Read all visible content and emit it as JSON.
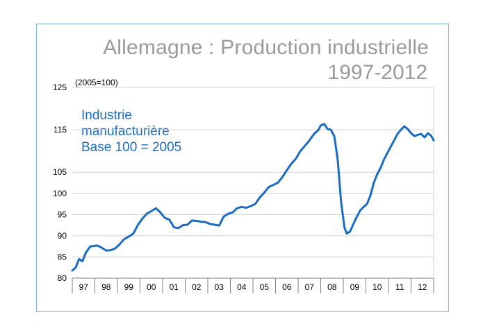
{
  "chart_data": {
    "type": "line",
    "title": "Allemagne : Production industrielle",
    "subtitle": "1997-2012",
    "unit_label": "(2005=100)",
    "series_label_lines": [
      "Industrie",
      "manufacturière",
      "Base 100 = 2005"
    ],
    "xlabel": "",
    "ylabel": "",
    "x_categories": [
      "97",
      "98",
      "99",
      "00",
      "01",
      "02",
      "03",
      "04",
      "05",
      "06",
      "07",
      "08",
      "09",
      "10",
      "11",
      "12"
    ],
    "y_ticks": [
      80,
      85,
      90,
      95,
      100,
      105,
      115,
      125
    ],
    "ylim": [
      80,
      125
    ],
    "grid": "horizontal",
    "series": [
      {
        "color": "#1a6bc4",
        "points": [
          [
            1997.0,
            81.8
          ],
          [
            1997.15,
            82.5
          ],
          [
            1997.3,
            84.5
          ],
          [
            1997.45,
            84.0
          ],
          [
            1997.6,
            86.0
          ],
          [
            1997.8,
            87.5
          ],
          [
            1997.95,
            87.6
          ],
          [
            1998.1,
            87.7
          ],
          [
            1998.3,
            87.2
          ],
          [
            1998.5,
            86.5
          ],
          [
            1998.7,
            86.6
          ],
          [
            1998.9,
            87.0
          ],
          [
            1999.1,
            88.0
          ],
          [
            1999.3,
            89.2
          ],
          [
            1999.5,
            89.8
          ],
          [
            1999.7,
            90.5
          ],
          [
            1999.9,
            92.5
          ],
          [
            2000.1,
            94.0
          ],
          [
            2000.3,
            95.2
          ],
          [
            2000.5,
            95.8
          ],
          [
            2000.7,
            96.5
          ],
          [
            2000.9,
            95.5
          ],
          [
            2001.1,
            94.2
          ],
          [
            2001.3,
            93.8
          ],
          [
            2001.5,
            92.0
          ],
          [
            2001.7,
            91.8
          ],
          [
            2001.9,
            92.5
          ],
          [
            2002.1,
            92.6
          ],
          [
            2002.3,
            93.6
          ],
          [
            2002.5,
            93.5
          ],
          [
            2002.7,
            93.3
          ],
          [
            2002.9,
            93.2
          ],
          [
            2003.1,
            92.8
          ],
          [
            2003.3,
            92.6
          ],
          [
            2003.5,
            92.4
          ],
          [
            2003.7,
            94.5
          ],
          [
            2003.9,
            95.2
          ],
          [
            2004.1,
            95.5
          ],
          [
            2004.3,
            96.5
          ],
          [
            2004.5,
            96.8
          ],
          [
            2004.7,
            96.6
          ],
          [
            2004.9,
            97.0
          ],
          [
            2005.1,
            97.5
          ],
          [
            2005.3,
            99.0
          ],
          [
            2005.5,
            100.2
          ],
          [
            2005.7,
            101.5
          ],
          [
            2005.9,
            102.0
          ],
          [
            2006.1,
            102.5
          ],
          [
            2006.3,
            103.8
          ],
          [
            2006.5,
            105.5
          ],
          [
            2006.7,
            107.0
          ],
          [
            2006.9,
            108.2
          ],
          [
            2007.1,
            110.0
          ],
          [
            2007.3,
            111.2
          ],
          [
            2007.5,
            112.5
          ],
          [
            2007.7,
            114.0
          ],
          [
            2007.9,
            115.0
          ],
          [
            2008.0,
            116.0
          ],
          [
            2008.15,
            116.4
          ],
          [
            2008.3,
            115.2
          ],
          [
            2008.45,
            115.0
          ],
          [
            2008.6,
            113.5
          ],
          [
            2008.75,
            108.0
          ],
          [
            2008.9,
            98.0
          ],
          [
            2009.05,
            92.0
          ],
          [
            2009.15,
            90.5
          ],
          [
            2009.3,
            91.0
          ],
          [
            2009.45,
            92.8
          ],
          [
            2009.6,
            94.5
          ],
          [
            2009.75,
            96.0
          ],
          [
            2009.9,
            96.8
          ],
          [
            2010.05,
            97.5
          ],
          [
            2010.2,
            99.5
          ],
          [
            2010.35,
            102.5
          ],
          [
            2010.5,
            104.5
          ],
          [
            2010.65,
            106.0
          ],
          [
            2010.8,
            108.0
          ],
          [
            2010.95,
            109.5
          ],
          [
            2011.1,
            111.0
          ],
          [
            2011.25,
            112.5
          ],
          [
            2011.4,
            114.0
          ],
          [
            2011.55,
            115.0
          ],
          [
            2011.7,
            115.8
          ],
          [
            2011.85,
            115.2
          ],
          [
            2012.0,
            114.2
          ],
          [
            2012.15,
            113.5
          ],
          [
            2012.3,
            113.8
          ],
          [
            2012.45,
            114.0
          ],
          [
            2012.6,
            113.2
          ],
          [
            2012.75,
            114.2
          ],
          [
            2012.9,
            113.5
          ],
          [
            2013.0,
            112.5
          ]
        ]
      }
    ]
  }
}
